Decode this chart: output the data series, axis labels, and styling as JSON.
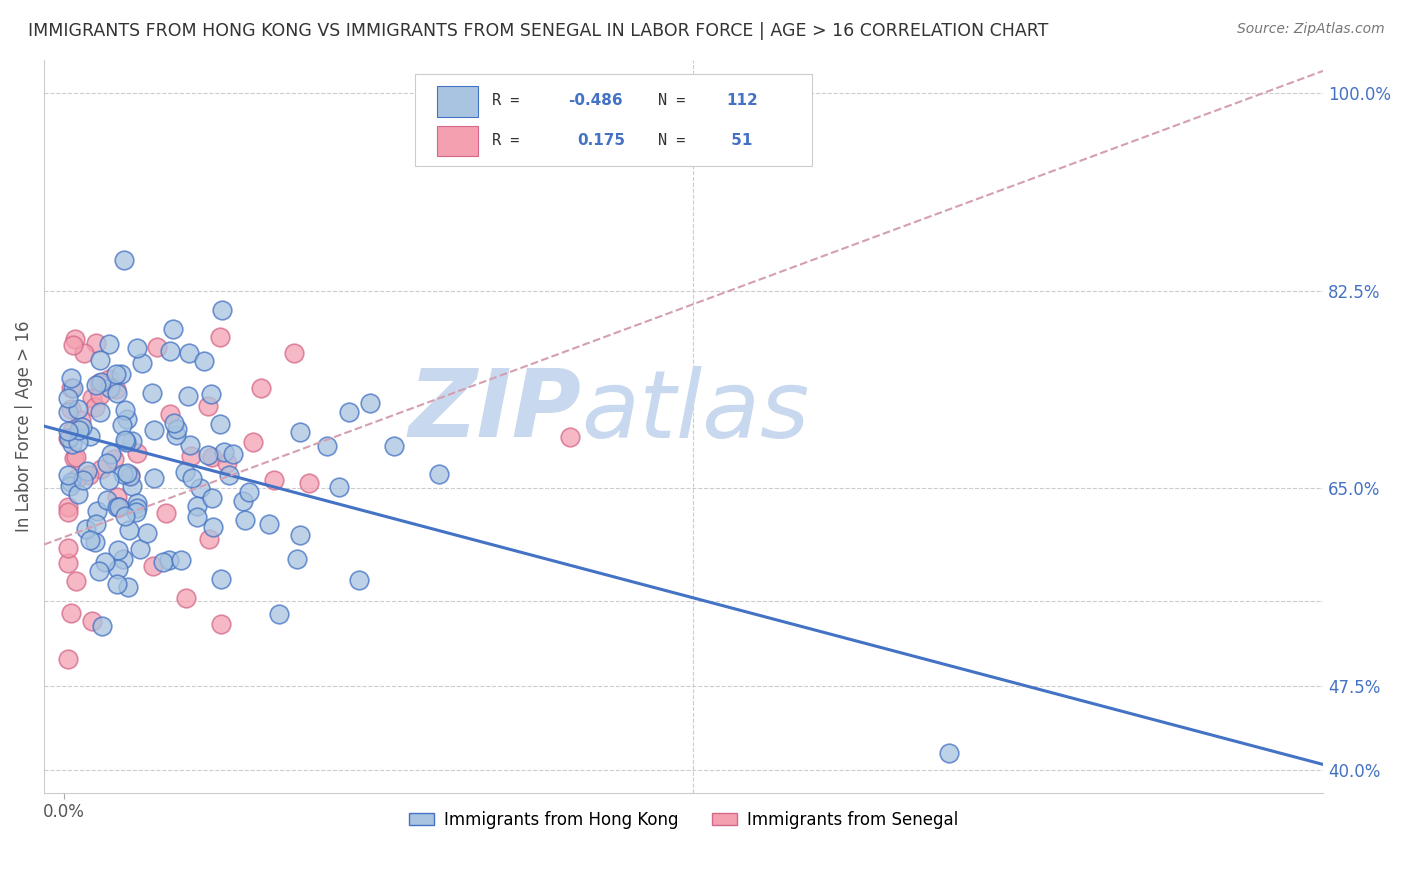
{
  "title": "IMMIGRANTS FROM HONG KONG VS IMMIGRANTS FROM SENEGAL IN LABOR FORCE | AGE > 16 CORRELATION CHART",
  "source": "Source: ZipAtlas.com",
  "ylabel": "In Labor Force | Age > 16",
  "xlim": [
    -0.005,
    0.32
  ],
  "ylim": [
    0.38,
    1.03
  ],
  "ytick_vals": [
    0.4,
    0.475,
    0.55,
    0.65,
    0.825,
    1.0
  ],
  "ytick_labels": [
    "40.0%",
    "47.5%",
    "",
    "65.0%",
    "82.5%",
    "100.0%"
  ],
  "hk_R": -0.486,
  "hk_N": 112,
  "sen_R": 0.175,
  "sen_N": 51,
  "hk_color": "#a8c4e0",
  "sen_color": "#f4a0b0",
  "hk_edge_color": "#4472c4",
  "sen_edge_color": "#d4688a",
  "hk_line_color": "#4472c4",
  "sen_line_color": "#d4a0b0",
  "background_color": "#ffffff",
  "grid_color": "#cccccc",
  "title_color": "#333333",
  "source_color": "#777777",
  "watermark_zip": "ZIP",
  "watermark_atlas": "atlas",
  "watermark_color_zip": "#c8d8ee",
  "watermark_color_atlas": "#c8d8ee",
  "legend_label_hk": "Immigrants from Hong Kong",
  "legend_label_sen": "Immigrants from Senegal",
  "tick_label_color": "#4472c4"
}
